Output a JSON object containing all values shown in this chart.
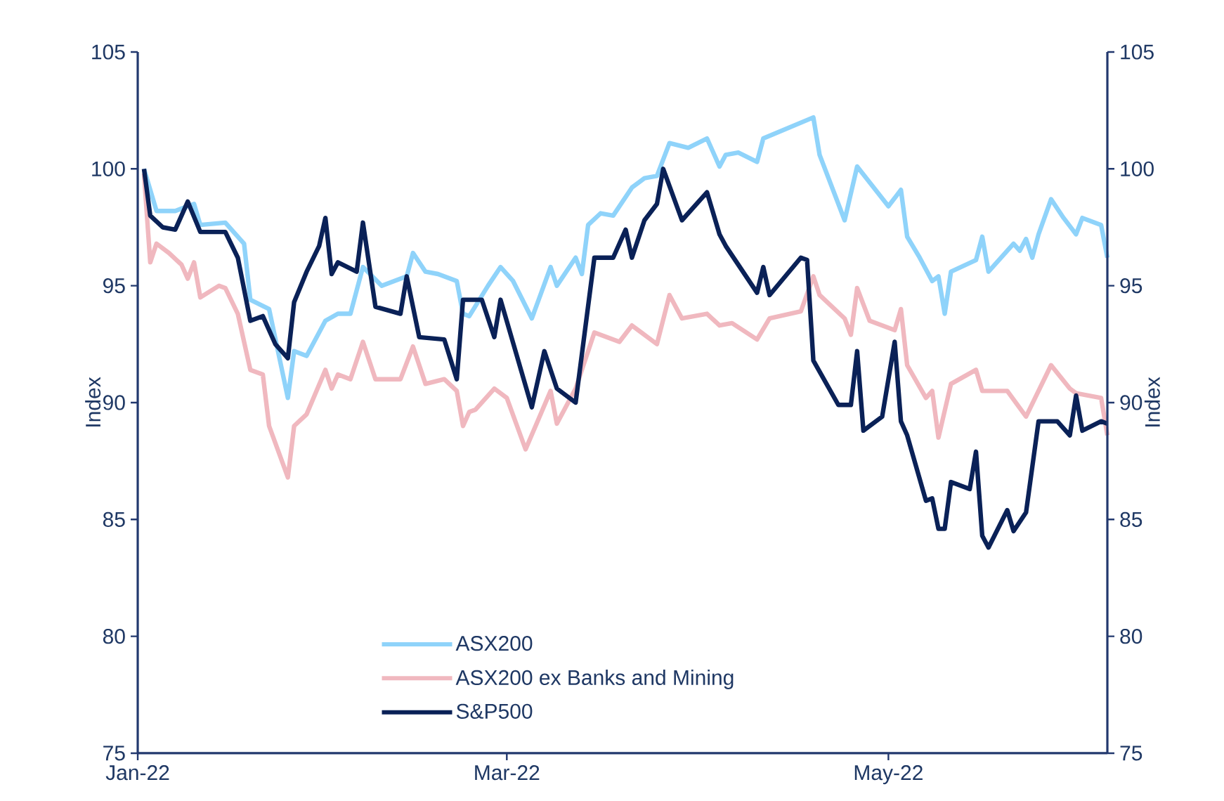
{
  "chart_data": {
    "type": "line",
    "xlim": [
      "2022-01-01",
      "2022-06-05"
    ],
    "xticks": [
      {
        "value": "2022-01-01",
        "label": "Jan-22"
      },
      {
        "value": "2022-03-01",
        "label": "Mar-22"
      },
      {
        "value": "2022-05-01",
        "label": "May-22"
      }
    ],
    "ylim": [
      75,
      105
    ],
    "yticks": [
      75,
      80,
      85,
      90,
      95,
      100,
      105
    ],
    "y2lim": [
      75,
      105
    ],
    "y2ticks": [
      75,
      80,
      85,
      90,
      95,
      100,
      105
    ],
    "ylabel": "Index",
    "y2label": "Index",
    "grid": false,
    "legend": "bottom left",
    "marker": "none",
    "line_style": "solid",
    "series": [
      {
        "name": "ASX200",
        "color": "#8fd3fa",
        "x": [
          "2022-01-02",
          "2022-01-04",
          "2022-01-07",
          "2022-01-10",
          "2022-01-11",
          "2022-01-15",
          "2022-01-18",
          "2022-01-19",
          "2022-01-22",
          "2022-01-25",
          "2022-01-26",
          "2022-01-28",
          "2022-01-31",
          "2022-02-02",
          "2022-02-04",
          "2022-02-06",
          "2022-02-09",
          "2022-02-13",
          "2022-02-14",
          "2022-02-16",
          "2022-02-18",
          "2022-02-21",
          "2022-02-22",
          "2022-02-23",
          "2022-02-26",
          "2022-02-28",
          "2022-03-02",
          "2022-03-05",
          "2022-03-08",
          "2022-03-09",
          "2022-03-12",
          "2022-03-13",
          "2022-03-14",
          "2022-03-16",
          "2022-03-18",
          "2022-03-21",
          "2022-03-23",
          "2022-03-25",
          "2022-03-27",
          "2022-03-30",
          "2022-04-02",
          "2022-04-04",
          "2022-04-05",
          "2022-04-07",
          "2022-04-10",
          "2022-04-11",
          "2022-04-19",
          "2022-04-20",
          "2022-04-24",
          "2022-04-26",
          "2022-05-01",
          "2022-05-03",
          "2022-05-04",
          "2022-05-06",
          "2022-05-08",
          "2022-05-09",
          "2022-05-10",
          "2022-05-11",
          "2022-05-15",
          "2022-05-16",
          "2022-05-17",
          "2022-05-21",
          "2022-05-22",
          "2022-05-23",
          "2022-05-24",
          "2022-05-25",
          "2022-05-27",
          "2022-05-29",
          "2022-05-31",
          "2022-06-01",
          "2022-06-04",
          "2022-06-05"
        ],
        "values": [
          100.0,
          98.2,
          98.2,
          98.5,
          97.6,
          97.7,
          96.8,
          94.4,
          94.0,
          90.2,
          92.2,
          92.0,
          93.5,
          93.8,
          93.8,
          95.8,
          95.0,
          95.4,
          96.4,
          95.6,
          95.5,
          95.2,
          93.8,
          93.7,
          95.0,
          95.8,
          95.2,
          93.6,
          95.8,
          95.0,
          96.2,
          95.5,
          97.6,
          98.1,
          98.0,
          99.2,
          99.6,
          99.7,
          101.1,
          100.9,
          101.3,
          100.1,
          100.6,
          100.7,
          100.3,
          101.3,
          102.2,
          100.6,
          97.8,
          100.1,
          98.4,
          99.1,
          97.1,
          96.2,
          95.2,
          95.4,
          93.8,
          95.6,
          96.1,
          97.1,
          95.6,
          96.8,
          96.5,
          97.0,
          96.2,
          97.2,
          98.7,
          97.9,
          97.2,
          97.9,
          97.6,
          96.2
        ]
      },
      {
        "name": "ASX200 ex Banks and Mining",
        "color": "#f0b8bf",
        "x": [
          "2022-01-02",
          "2022-01-03",
          "2022-01-04",
          "2022-01-06",
          "2022-01-08",
          "2022-01-09",
          "2022-01-10",
          "2022-01-11",
          "2022-01-14",
          "2022-01-15",
          "2022-01-17",
          "2022-01-19",
          "2022-01-21",
          "2022-01-22",
          "2022-01-25",
          "2022-01-26",
          "2022-01-28",
          "2022-01-31",
          "2022-02-01",
          "2022-02-02",
          "2022-02-04",
          "2022-02-06",
          "2022-02-08",
          "2022-02-12",
          "2022-02-14",
          "2022-02-16",
          "2022-02-19",
          "2022-02-21",
          "2022-02-22",
          "2022-02-23",
          "2022-02-24",
          "2022-02-27",
          "2022-03-01",
          "2022-03-04",
          "2022-03-08",
          "2022-03-09",
          "2022-03-12",
          "2022-03-15",
          "2022-03-19",
          "2022-03-21",
          "2022-03-22",
          "2022-03-25",
          "2022-03-27",
          "2022-03-29",
          "2022-04-02",
          "2022-04-04",
          "2022-04-06",
          "2022-04-10",
          "2022-04-12",
          "2022-04-17",
          "2022-04-19",
          "2022-04-20",
          "2022-04-24",
          "2022-04-25",
          "2022-04-26",
          "2022-04-28",
          "2022-05-02",
          "2022-05-03",
          "2022-05-04",
          "2022-05-07",
          "2022-05-08",
          "2022-05-09",
          "2022-05-11",
          "2022-05-13",
          "2022-05-15",
          "2022-05-16",
          "2022-05-20",
          "2022-05-23",
          "2022-05-27",
          "2022-05-30",
          "2022-05-31",
          "2022-06-04",
          "2022-06-05"
        ],
        "values": [
          99.8,
          96.0,
          96.8,
          96.4,
          95.9,
          95.3,
          96.0,
          94.5,
          95.0,
          94.9,
          93.8,
          91.4,
          91.2,
          89.0,
          86.8,
          89.0,
          89.5,
          91.4,
          90.6,
          91.2,
          91.0,
          92.6,
          91.0,
          91.0,
          92.4,
          90.8,
          91.0,
          90.5,
          89.0,
          89.6,
          89.7,
          90.6,
          90.2,
          88.0,
          90.5,
          89.1,
          90.6,
          93.0,
          92.6,
          93.3,
          93.1,
          92.5,
          94.6,
          93.6,
          93.8,
          93.3,
          93.4,
          92.7,
          93.6,
          93.9,
          95.4,
          94.6,
          93.6,
          92.9,
          94.9,
          93.5,
          93.1,
          94.0,
          91.6,
          90.2,
          90.5,
          88.5,
          90.8,
          91.1,
          91.4,
          90.5,
          90.5,
          89.4,
          91.6,
          90.6,
          90.4,
          90.2,
          88.6
        ]
      },
      {
        "name": "S&P500",
        "color": "#0a2157",
        "x": [
          "2022-01-02",
          "2022-01-03",
          "2022-01-05",
          "2022-01-07",
          "2022-01-09",
          "2022-01-11",
          "2022-01-15",
          "2022-01-17",
          "2022-01-19",
          "2022-01-21",
          "2022-01-23",
          "2022-01-25",
          "2022-01-26",
          "2022-01-28",
          "2022-01-30",
          "2022-01-31",
          "2022-02-01",
          "2022-02-02",
          "2022-02-05",
          "2022-02-06",
          "2022-02-08",
          "2022-02-12",
          "2022-02-13",
          "2022-02-15",
          "2022-02-19",
          "2022-02-21",
          "2022-02-22",
          "2022-02-25",
          "2022-02-27",
          "2022-02-28",
          "2022-03-05",
          "2022-03-07",
          "2022-03-09",
          "2022-03-12",
          "2022-03-15",
          "2022-03-18",
          "2022-03-20",
          "2022-03-21",
          "2022-03-23",
          "2022-03-25",
          "2022-03-26",
          "2022-03-29",
          "2022-04-02",
          "2022-04-04",
          "2022-04-05",
          "2022-04-10",
          "2022-04-11",
          "2022-04-12",
          "2022-04-17",
          "2022-04-18",
          "2022-04-19",
          "2022-04-23",
          "2022-04-25",
          "2022-04-26",
          "2022-04-27",
          "2022-04-30",
          "2022-05-02",
          "2022-05-03",
          "2022-05-04",
          "2022-05-07",
          "2022-05-08",
          "2022-05-09",
          "2022-05-10",
          "2022-05-11",
          "2022-05-14",
          "2022-05-15",
          "2022-05-16",
          "2022-05-17",
          "2022-05-20",
          "2022-05-21",
          "2022-05-23",
          "2022-05-25",
          "2022-05-28",
          "2022-05-30",
          "2022-05-31",
          "2022-06-01",
          "2022-06-04",
          "2022-06-05"
        ],
        "values": [
          100.0,
          98.0,
          97.5,
          97.4,
          98.6,
          97.3,
          97.3,
          96.2,
          93.5,
          93.7,
          92.5,
          91.9,
          94.3,
          95.6,
          96.7,
          97.9,
          95.5,
          96.0,
          95.6,
          97.7,
          94.1,
          93.8,
          95.4,
          92.8,
          92.7,
          91.0,
          94.4,
          94.4,
          92.8,
          94.4,
          89.8,
          92.2,
          90.6,
          90.0,
          96.2,
          96.2,
          97.4,
          96.2,
          97.8,
          98.5,
          100.0,
          97.8,
          99.0,
          97.2,
          96.7,
          94.7,
          95.8,
          94.6,
          96.2,
          96.1,
          91.8,
          89.9,
          89.9,
          92.2,
          88.8,
          89.4,
          92.6,
          89.2,
          88.6,
          85.8,
          85.9,
          84.6,
          84.6,
          86.6,
          86.3,
          87.9,
          84.3,
          83.8,
          85.4,
          84.5,
          85.3,
          89.2,
          89.2,
          88.6,
          90.3,
          88.8,
          89.2,
          89.1
        ]
      }
    ]
  }
}
